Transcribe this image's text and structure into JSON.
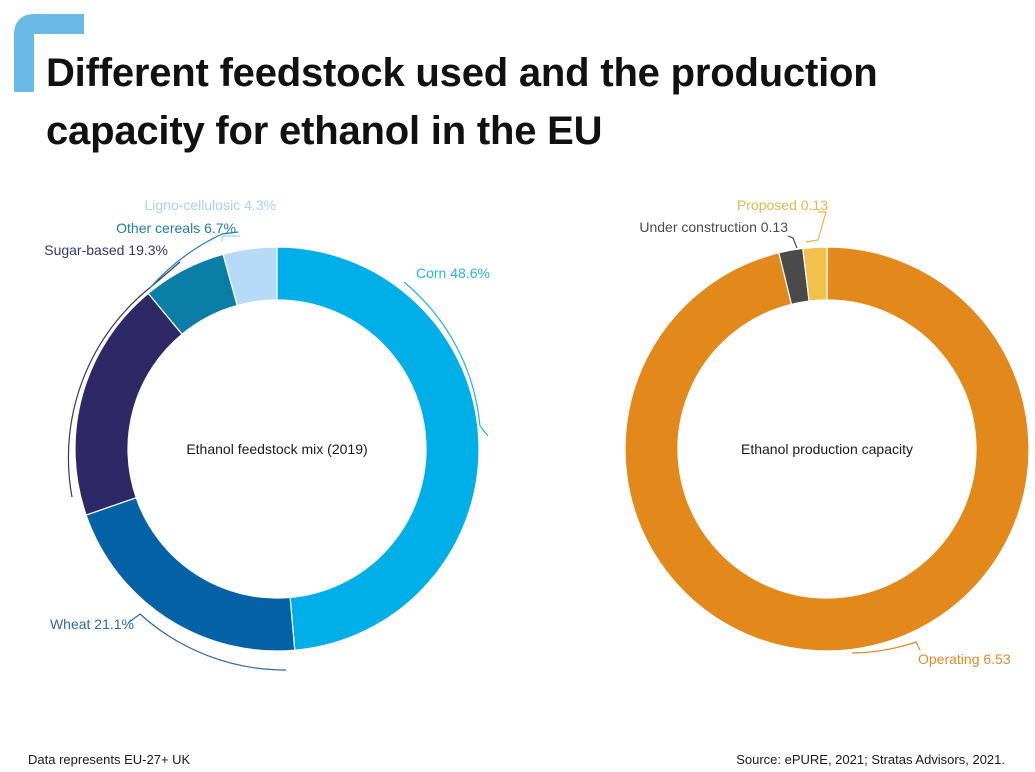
{
  "title": {
    "line1": "Different feedstock used and the production",
    "line2": "capacity for ethanol in the EU"
  },
  "colors": {
    "accent": "#69b9e6",
    "corn": "#00aee8",
    "wheat": "#0562a6",
    "sugar_based": "#2e2966",
    "other_cereals": "#0a7ea6",
    "ligno_cellulosic": "#b5dbf6",
    "operating": "#e3891b",
    "under_construction": "#4a4a4a",
    "proposed": "#f0c24d"
  },
  "chart_data": [
    {
      "type": "pie",
      "variant": "donut",
      "center_label": "Ethanol feedstock mix (2019)",
      "categories": [
        "Corn",
        "Wheat",
        "Sugar-based",
        "Other cereals",
        "Ligno-cellulosic"
      ],
      "values": [
        48.6,
        21.1,
        19.3,
        6.7,
        4.3
      ],
      "unit": "%",
      "labels": [
        "Corn 48.6%",
        "Wheat 21.1%",
        "Sugar-based 19.3%",
        "Other cereals 6.7%",
        "Ligno-cellulosic 4.3%"
      ],
      "label_colors": [
        "#29b3e6",
        "#2f6aa3",
        "#3a3570",
        "#1f7ea6",
        "#a9d3f0"
      ],
      "slice_colors": [
        "#00aee8",
        "#0562a6",
        "#2e2966",
        "#0a7ea6",
        "#b5dbf6"
      ]
    },
    {
      "type": "pie",
      "variant": "donut",
      "center_label": "Ethanol production capacity",
      "categories": [
        "Operating",
        "Under construction",
        "Proposed"
      ],
      "values": [
        6.53,
        0.13,
        0.13
      ],
      "labels": [
        "Operating 6.53",
        "Under construction 0.13",
        "Proposed 0.13"
      ],
      "label_colors": [
        "#e38a2a",
        "#4a4a4a",
        "#e8b64a"
      ],
      "slice_colors": [
        "#e3891b",
        "#4a4a4a",
        "#f0c24d"
      ]
    }
  ],
  "footer": {
    "left": "Data represents EU-27+ UK",
    "right": "Source: ePURE, 2021; Stratas Advisors, 2021."
  }
}
